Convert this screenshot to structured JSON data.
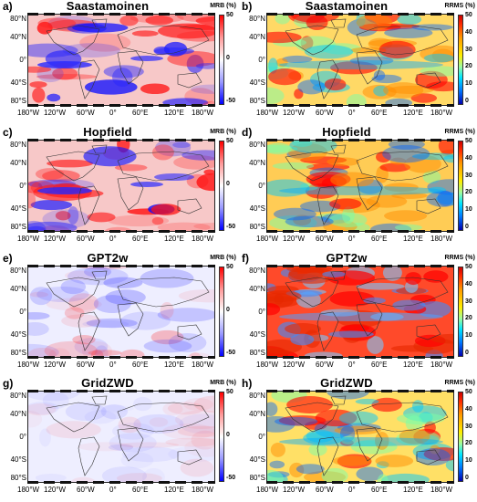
{
  "panels": [
    {
      "label": "a)",
      "title": "Saastamoinen",
      "metric": "MRB (%)",
      "ticks": [
        "50",
        "0",
        "-50"
      ],
      "scale": "mrb"
    },
    {
      "label": "b)",
      "title": "Saastamoinen",
      "metric": "RRMS (%)",
      "ticks": [
        "50",
        "40",
        "30",
        "20",
        "10",
        "0"
      ],
      "scale": "rrms"
    },
    {
      "label": "c)",
      "title": "Hopfield",
      "metric": "MRB (%)",
      "ticks": [
        "50",
        "0",
        "-50"
      ],
      "scale": "mrb"
    },
    {
      "label": "d)",
      "title": "Hopfield",
      "metric": "RRMS (%)",
      "ticks": [
        "50",
        "40",
        "30",
        "20",
        "10",
        "0"
      ],
      "scale": "rrms"
    },
    {
      "label": "e)",
      "title": "GPT2w",
      "metric": "MRB (%)",
      "ticks": [
        "50",
        "0",
        "-50"
      ],
      "scale": "mrb"
    },
    {
      "label": "f)",
      "title": "GPT2w",
      "metric": "RRMS (%)",
      "ticks": [
        "50",
        "40",
        "30",
        "20",
        "10",
        "0"
      ],
      "scale": "rrms"
    },
    {
      "label": "g)",
      "title": "GridZWD",
      "metric": "MRB (%)",
      "ticks": [
        "50",
        "0",
        "-50"
      ],
      "scale": "mrb"
    },
    {
      "label": "h)",
      "title": "GridZWD",
      "metric": "RRMS (%)",
      "ticks": [
        "50",
        "40",
        "30",
        "20",
        "10",
        "0"
      ],
      "scale": "rrms"
    }
  ],
  "lat_ticks": [
    "80°N",
    "40°N",
    "0°",
    "40°S",
    "80°S"
  ],
  "lon_ticks": [
    "180°W",
    "120°W",
    "60°W",
    "0°",
    "60°E",
    "120°E",
    "180°W"
  ],
  "colors": {
    "mrb_pos": "#ff0000",
    "mrb_neg": "#0000ff",
    "mrb_zero": "#ffffff",
    "rrms_high": "#cc0000",
    "rrms_mid": "#ffee00",
    "rrms_low": "#0000b0"
  }
}
